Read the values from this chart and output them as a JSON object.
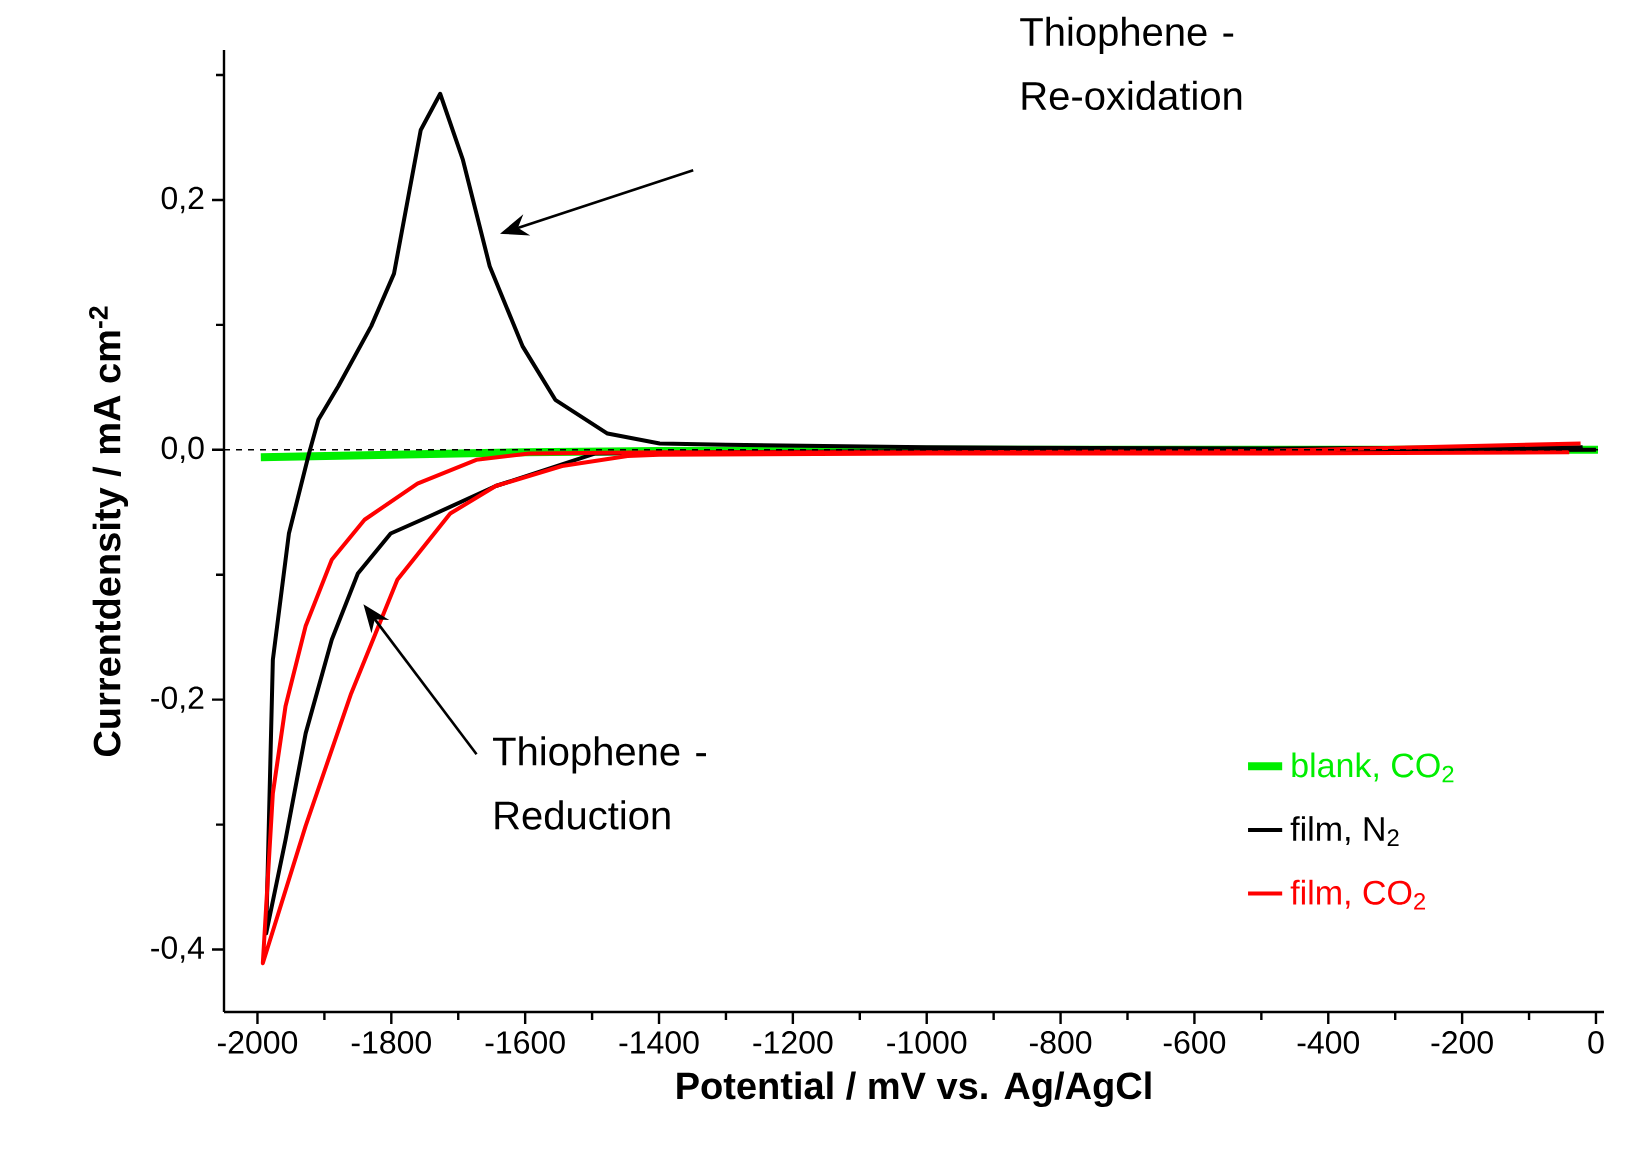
{
  "chart_data": {
    "type": "line",
    "xlabel": "Potential / mV vs. Ag/AgCl",
    "ylabel": "Currentdensity / mA cm$^{-2}$",
    "xlim": [
      -2050,
      12
    ],
    "ylim": [
      -0.45,
      0.32
    ],
    "xticks": [
      -2000,
      {
        "value": -1900,
        "label": null
      },
      -1800,
      {
        "value": -1700,
        "label": null
      },
      -1600,
      {
        "value": -1500,
        "label": null
      },
      -1400,
      {
        "value": -1300,
        "label": null
      },
      -1200,
      {
        "value": -1100,
        "label": null
      },
      -1000,
      {
        "value": -900,
        "label": null
      },
      -800,
      {
        "value": -700,
        "label": null
      },
      -600,
      {
        "value": -500,
        "label": null
      },
      -400,
      {
        "value": -300,
        "label": null
      },
      -200,
      {
        "value": -100,
        "label": null
      },
      0
    ],
    "yticks": [
      {
        "value": -0.4,
        "label": "-0,4"
      },
      {
        "value": -0.3,
        "label": null
      },
      {
        "value": -0.2,
        "label": "-0,2"
      },
      {
        "value": -0.1,
        "label": null
      },
      {
        "value": 0.0,
        "label": "0,0"
      },
      {
        "value": 0.1,
        "label": null
      },
      {
        "value": 0.2,
        "label": "0,2"
      },
      {
        "value": 0.3,
        "label": null
      }
    ],
    "legend": "bottom right",
    "ref_lines": [
      {
        "axis": "y",
        "value": 0,
        "color": "#000000",
        "line_style": "dashed"
      }
    ],
    "annotations": [
      "Thiophene - Re-oxidation",
      "Thiophene - Reduction"
    ],
    "series": [
      {
        "name": "blank, CO$_{2}$",
        "color": "#00ee00",
        "x": [
          -1995,
          -1800,
          -1600,
          -1400,
          -1000,
          -500,
          3
        ],
        "values": [
          -0.006,
          -0.004,
          -0.002,
          -0.001,
          0.0,
          0.0,
          0.0
        ]
      },
      {
        "name": "film, N$_{2}$",
        "color": "#000000",
        "x": [
          0,
          -500,
          -1000,
          -1300,
          -1496,
          -1644,
          -1742,
          -1801,
          -1850,
          -1889,
          -1928,
          -1958,
          -1987,
          -1977,
          -1953,
          -1923,
          -1909,
          -1879,
          -1830,
          -1796,
          -1756,
          -1727,
          -1693,
          -1653,
          -1604,
          -1555,
          -1477,
          -1399,
          -1300,
          -1000,
          -500,
          -20
        ],
        "values": [
          0.0,
          -0.001,
          -0.001,
          -0.002,
          -0.003,
          -0.029,
          -0.053,
          -0.067,
          -0.099,
          -0.152,
          -0.227,
          -0.312,
          -0.387,
          -0.168,
          -0.067,
          -0.003,
          0.024,
          0.051,
          0.099,
          0.141,
          0.256,
          0.285,
          0.232,
          0.147,
          0.083,
          0.04,
          0.013,
          0.005,
          0.004,
          0.002,
          0.001,
          0.002
        ]
      },
      {
        "name": "film, CO$_{2}$",
        "color": "#ff0000",
        "x": [
          -40,
          -500,
          -1000,
          -1400,
          -1447,
          -1545,
          -1644,
          -1712,
          -1791,
          -1860,
          -1928,
          -1992,
          -1977,
          -1958,
          -1928,
          -1889,
          -1840,
          -1761,
          -1673,
          -1594,
          -1400,
          -1000,
          -500,
          -23
        ],
        "values": [
          -0.002,
          -0.003,
          -0.003,
          -0.004,
          -0.005,
          -0.013,
          -0.029,
          -0.051,
          -0.104,
          -0.195,
          -0.301,
          -0.411,
          -0.275,
          -0.205,
          -0.141,
          -0.088,
          -0.056,
          -0.027,
          -0.008,
          -0.003,
          -0.002,
          -0.002,
          -0.001,
          0.005
        ]
      }
    ]
  }
}
